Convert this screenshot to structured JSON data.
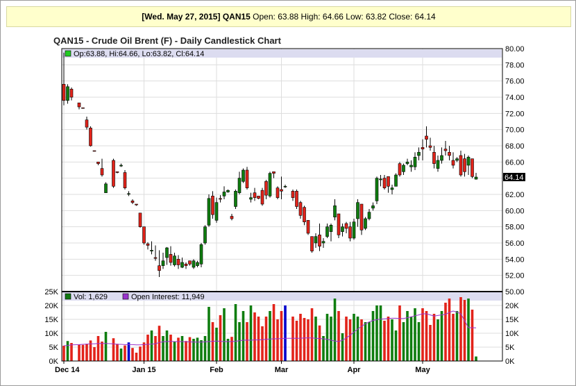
{
  "summary": {
    "date": "[Wed. May 27, 2015]",
    "symbol": "QAN15",
    "rest": "Open: 63.88 High: 64.66 Low: 63.82 Close: 64.14"
  },
  "colors": {
    "up": "#0f7d0f",
    "down": "#e2231a",
    "doji": "#0000cc",
    "interest": "#9933cc",
    "legend_band": "#dcdcf0",
    "grid": "#dddddd"
  },
  "chart_data": {
    "type": "candlestick",
    "title": "QAN15 - Crude Oil Brent (F) - Daily Candlestick Chart",
    "legend_price": "Op:63.88, Hi:64.66, Lo:63.82, Cl:64.14",
    "legend_volume": "Vol: 1,629",
    "legend_interest": "Open Interest: 11,949",
    "last_price_label": "64.14",
    "price_axis": {
      "min": 50,
      "max": 80,
      "ticks": [
        "50.00",
        "52.00",
        "54.00",
        "56.00",
        "58.00",
        "60.00",
        "62.00",
        "64.00",
        "66.00",
        "68.00",
        "70.00",
        "72.00",
        "74.00",
        "76.00",
        "78.00",
        "80.00"
      ]
    },
    "volume_axis": {
      "min": 0,
      "max": 25000,
      "ticks": [
        0,
        5000,
        10000,
        15000,
        20000
      ],
      "tick_labels": [
        "0K",
        "5K",
        "10K",
        "15K",
        "20K"
      ],
      "left_max_label": "25K"
    },
    "x_labels": [
      {
        "label": "Dec 14",
        "index": 0
      },
      {
        "label": "Jan 15",
        "index": 21
      },
      {
        "label": "Feb",
        "index": 40
      },
      {
        "label": "Mar",
        "index": 57
      },
      {
        "label": "Apr",
        "index": 76
      },
      {
        "label": "May",
        "index": 94
      }
    ],
    "bars": [
      [
        75.6,
        79.5,
        73.0,
        73.6,
        5500,
        5500
      ],
      [
        73.6,
        75.6,
        73.2,
        75.3,
        7200,
        5600
      ],
      [
        75.0,
        75.2,
        73.6,
        74.0,
        6500,
        5800
      ],
      [
        null,
        null,
        null,
        null,
        0,
        0
      ],
      [
        73.3,
        73.3,
        72.5,
        72.8,
        6000,
        5900
      ],
      [
        72.7,
        72.7,
        72.6,
        72.65,
        5800,
        6000
      ],
      [
        71.2,
        71.6,
        70.0,
        70.3,
        6200,
        6100
      ],
      [
        70.2,
        70.4,
        67.9,
        68.0,
        7400,
        6200
      ],
      [
        67.4,
        67.4,
        67.3,
        67.35,
        5000,
        6200
      ],
      [
        66.0,
        66.0,
        65.6,
        65.8,
        9000,
        6300
      ],
      [
        65.2,
        66.4,
        64.2,
        64.4,
        7000,
        6300
      ],
      [
        62.2,
        63.5,
        62.2,
        63.3,
        10500,
        6300
      ],
      [
        null,
        null,
        null,
        null,
        0,
        0
      ],
      [
        66.2,
        66.4,
        62.8,
        63.0,
        8200,
        6200
      ],
      [
        64.8,
        64.8,
        64.6,
        64.7,
        6200,
        6000
      ],
      [
        65.5,
        65.8,
        65.4,
        65.6,
        4500,
        6000
      ],
      [
        64.7,
        65.0,
        62.6,
        62.8,
        5600,
        5900
      ],
      [
        62.1,
        62.4,
        61.8,
        62.1,
        6700,
        5900
      ],
      [
        61.2,
        61.4,
        60.8,
        61.0,
        4700,
        5900
      ],
      [
        60.8,
        60.8,
        60.6,
        60.7,
        3000,
        5800
      ],
      [
        59.7,
        59.7,
        57.9,
        58.0,
        5200,
        5800
      ],
      [
        58.0,
        58.0,
        55.8,
        56.0,
        6700,
        5900
      ],
      [
        55.9,
        56.1,
        55.2,
        55.7,
        9500,
        6000
      ],
      [
        55.0,
        56.2,
        54.6,
        55.1,
        11000,
        6100
      ],
      [
        54.2,
        55.7,
        53.8,
        54.1,
        9000,
        6200
      ],
      [
        53.2,
        55.1,
        51.8,
        52.6,
        12700,
        6700
      ],
      [
        53.2,
        54.8,
        52.8,
        53.8,
        9000,
        6900
      ],
      [
        54.2,
        55.5,
        53.3,
        55.4,
        11000,
        7000
      ],
      [
        54.6,
        55.6,
        53.2,
        53.6,
        9500,
        7100
      ],
      [
        53.3,
        54.8,
        53.1,
        54.4,
        7000,
        7000
      ],
      [
        54.0,
        54.5,
        52.8,
        53.3,
        8400,
        7000
      ],
      [
        53.0,
        54.2,
        52.9,
        53.6,
        9000,
        7000
      ],
      [
        53.4,
        53.6,
        52.8,
        53.2,
        7200,
        6900
      ],
      [
        53.8,
        53.8,
        53.2,
        53.4,
        8600,
        6900
      ],
      [
        53.0,
        54.0,
        52.8,
        53.8,
        8000,
        6800
      ],
      [
        53.2,
        53.8,
        53.0,
        53.6,
        8400,
        6800
      ],
      [
        53.4,
        56.0,
        53.0,
        55.8,
        7500,
        6800
      ],
      [
        56.0,
        58.2,
        55.8,
        58.0,
        9000,
        6900
      ],
      [
        58.2,
        62.0,
        58.0,
        61.5,
        19500,
        7000
      ],
      [
        61.8,
        62.4,
        59.0,
        59.5,
        14000,
        7100
      ],
      [
        58.8,
        61.6,
        58.5,
        61.0,
        12000,
        7200
      ],
      [
        61.5,
        61.9,
        61.0,
        61.4,
        16500,
        7100
      ],
      [
        61.8,
        63.0,
        61.4,
        62.3,
        19000,
        7000
      ],
      [
        62.3,
        62.6,
        62.2,
        62.5,
        8000,
        7000
      ],
      [
        59.3,
        59.6,
        58.8,
        59.0,
        8700,
        7000
      ],
      [
        60.5,
        62.6,
        60.2,
        62.4,
        20500,
        7100
      ],
      [
        62.2,
        64.8,
        62.0,
        64.0,
        14000,
        7300
      ],
      [
        63.6,
        65.2,
        63.4,
        65.0,
        18000,
        7500
      ],
      [
        65.0,
        65.4,
        62.6,
        62.8,
        14000,
        7500
      ],
      [
        61.4,
        62.2,
        61.0,
        61.6,
        20000,
        7500
      ],
      [
        62.2,
        62.8,
        61.2,
        61.6,
        17500,
        7600
      ],
      [
        61.8,
        61.8,
        61.4,
        61.5,
        16000,
        7600
      ],
      [
        62.5,
        62.8,
        60.6,
        60.8,
        12500,
        7700
      ],
      [
        63.6,
        63.8,
        61.4,
        61.9,
        16000,
        7800
      ],
      [
        61.8,
        64.8,
        61.6,
        64.6,
        18000,
        7900
      ],
      [
        64.8,
        64.8,
        64.0,
        64.6,
        20500,
        8000
      ],
      [
        62.8,
        63.0,
        61.4,
        61.6,
        15000,
        8000
      ],
      [
        62.6,
        64.2,
        61.4,
        62.4,
        18000,
        8100
      ],
      [
        63.0,
        63.2,
        62.8,
        63.0,
        20000,
        8200
      ],
      [
        null,
        null,
        null,
        null,
        0,
        0
      ],
      [
        62.4,
        62.6,
        61.2,
        61.6,
        16000,
        8200
      ],
      [
        62.4,
        62.6,
        60.2,
        60.5,
        14500,
        8200
      ],
      [
        61.0,
        61.2,
        59.0,
        59.4,
        17000,
        8200
      ],
      [
        60.4,
        60.6,
        58.2,
        58.6,
        15500,
        8300
      ],
      [
        58.8,
        58.8,
        57.0,
        57.2,
        15000,
        8300
      ],
      [
        56.8,
        56.8,
        54.8,
        55.0,
        19000,
        8300
      ],
      [
        56.0,
        57.2,
        55.4,
        56.8,
        16000,
        8200
      ],
      [
        57.0,
        58.4,
        55.0,
        55.6,
        12800,
        8100
      ],
      [
        56.0,
        56.6,
        55.4,
        56.2,
        9000,
        8000
      ],
      [
        56.8,
        58.4,
        56.6,
        58.0,
        17000,
        7800
      ],
      [
        57.4,
        58.4,
        56.2,
        58.2,
        16000,
        7500
      ],
      [
        59.2,
        61.4,
        58.8,
        60.6,
        22500,
        7200
      ],
      [
        59.6,
        59.6,
        56.6,
        57.0,
        18000,
        7000
      ],
      [
        57.4,
        58.4,
        56.8,
        58.0,
        10000,
        7500
      ],
      [
        58.4,
        58.6,
        57.2,
        57.8,
        16000,
        8300
      ],
      [
        58.0,
        58.6,
        56.2,
        56.6,
        15000,
        9300
      ],
      [
        56.6,
        59.0,
        56.4,
        58.6,
        17000,
        10400
      ],
      [
        59.0,
        61.4,
        58.0,
        61.0,
        16000,
        11500
      ],
      [
        60.8,
        60.8,
        57.0,
        57.6,
        15000,
        12500
      ],
      [
        57.8,
        59.2,
        57.6,
        59.0,
        14000,
        13400
      ],
      [
        59.0,
        60.2,
        58.8,
        59.8,
        14000,
        14100
      ],
      [
        60.3,
        61.0,
        60.0,
        60.6,
        18000,
        14600
      ],
      [
        61.2,
        64.2,
        60.8,
        64.0,
        20000,
        14900
      ],
      [
        63.8,
        64.4,
        63.0,
        63.9,
        20000,
        15100
      ],
      [
        64.0,
        64.4,
        62.6,
        62.8,
        14500,
        15200
      ],
      [
        64.2,
        64.2,
        62.2,
        63.0,
        16000,
        15300
      ],
      [
        62.6,
        63.2,
        62.0,
        62.8,
        15000,
        15400
      ],
      [
        63.0,
        64.6,
        63.0,
        64.4,
        11000,
        15400
      ],
      [
        65.8,
        66.0,
        64.2,
        64.4,
        20000,
        15300
      ],
      [
        64.8,
        65.8,
        64.4,
        65.6,
        14000,
        15300
      ],
      [
        65.8,
        66.4,
        65.6,
        66.0,
        18000,
        15600
      ],
      [
        65.4,
        66.2,
        64.8,
        65.6,
        16000,
        15900
      ],
      [
        65.4,
        67.2,
        65.0,
        66.6,
        19000,
        16300
      ],
      [
        66.8,
        67.8,
        66.2,
        67.2,
        14000,
        16600
      ],
      [
        67.8,
        68.8,
        66.2,
        67.6,
        19000,
        17000
      ],
      [
        69.2,
        70.4,
        67.8,
        68.8,
        18000,
        17000
      ],
      [
        68.0,
        69.0,
        67.4,
        67.8,
        13000,
        16600
      ],
      [
        67.2,
        68.0,
        65.2,
        65.8,
        17000,
        16200
      ],
      [
        65.2,
        66.8,
        64.8,
        66.2,
        15000,
        16400
      ],
      [
        66.2,
        67.8,
        65.8,
        66.8,
        18000,
        16600
      ],
      [
        67.6,
        68.6,
        66.8,
        67.4,
        21000,
        16800
      ],
      [
        67.2,
        68.0,
        66.2,
        66.8,
        22500,
        17500
      ],
      [
        66.2,
        67.2,
        65.2,
        65.6,
        17000,
        18000
      ],
      [
        66.2,
        66.6,
        66.0,
        66.4,
        18000,
        17600
      ],
      [
        66.8,
        67.4,
        64.2,
        64.4,
        23000,
        17000
      ],
      [
        66.4,
        67.0,
        64.2,
        64.8,
        22000,
        14500
      ],
      [
        65.6,
        66.8,
        64.4,
        66.6,
        22500,
        12000
      ],
      [
        66.4,
        66.4,
        64.0,
        64.2,
        18500,
        12000
      ],
      [
        63.88,
        64.66,
        63.82,
        64.14,
        1629,
        11949
      ]
    ]
  }
}
